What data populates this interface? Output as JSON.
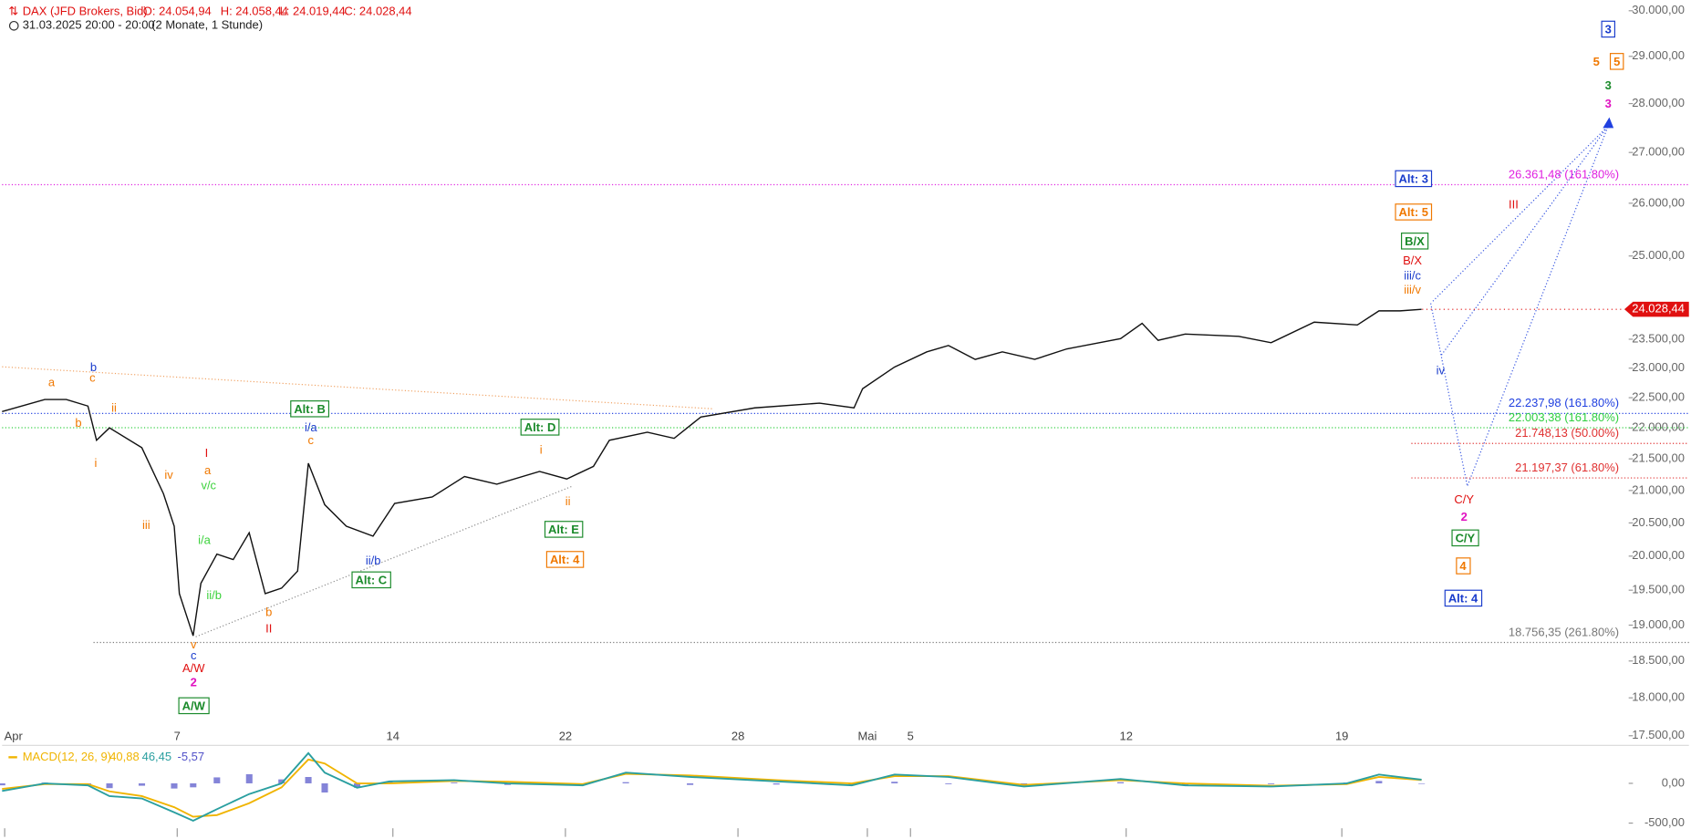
{
  "chart_data": [
    {
      "type": "line",
      "instrument": "DAX (JFD Brokers, Bid)",
      "ohlc_labels": [
        "O: 24.054,94",
        "H: 24.058,44",
        "L: 24.019,44",
        "C: 24.028,44"
      ],
      "period": "31.03.2025 20:00 - 20:00",
      "range": "(2 Monate, 1 Stunde)",
      "log_scale": true,
      "color": "#111111",
      "x": [
        -4.06,
        -3.07,
        -2.57,
        -2.07,
        -1.87,
        -1.57,
        -0.82,
        -0.32,
        -0.07,
        0.05,
        0.37,
        0.55,
        0.92,
        1.3,
        1.67,
        2.04,
        2.42,
        2.79,
        3.04,
        3.42,
        3.92,
        4.54,
        5.04,
        5.91,
        6.66,
        7.41,
        8.4,
        9.03,
        9.65,
        10.02,
        10.9,
        11.52,
        12.14,
        13.39,
        14.89,
        15.69,
        15.89,
        16.63,
        17.38,
        17.88,
        18.5,
        19.13,
        19.88,
        20.62,
        21.87,
        22.37,
        22.74,
        23.37,
        24.61,
        25.36,
        26.36,
        27.36,
        27.86,
        28.35,
        28.85
      ],
      "values": [
        22270,
        22470,
        22470,
        22360,
        21800,
        22000,
        21680,
        20950,
        20450,
        19450,
        18850,
        19600,
        20030,
        19950,
        20350,
        19450,
        19530,
        19780,
        21430,
        20780,
        20450,
        20300,
        20800,
        20900,
        21220,
        21100,
        21300,
        21180,
        21380,
        21800,
        21930,
        21830,
        22180,
        22330,
        22410,
        22330,
        22650,
        23020,
        23280,
        23390,
        23150,
        23280,
        23150,
        23330,
        23510,
        23780,
        23480,
        23590,
        23550,
        23440,
        23800,
        23750,
        24000,
        24000,
        24028.44
      ],
      "last_label": "24.028,44",
      "xlim": [
        -4.06,
        33.6
      ],
      "ylim": [
        17500,
        30000
      ],
      "xticks": [
        {
          "value": -4,
          "label": "Apr"
        },
        {
          "value": 0,
          "label": "7"
        },
        {
          "value": 5,
          "label": "14"
        },
        {
          "value": 9,
          "label": "22"
        },
        {
          "value": 13,
          "label": "28"
        },
        {
          "value": 16,
          "label": "Mai"
        },
        {
          "value": 17,
          "label": "5"
        },
        {
          "value": 22,
          "label": "12"
        },
        {
          "value": 27,
          "label": "19"
        }
      ],
      "yticks": [
        {
          "value": 30000,
          "label": "30.000,00"
        },
        {
          "value": 29000,
          "label": "29.000,00"
        },
        {
          "value": 28000,
          "label": "28.000,00"
        },
        {
          "value": 27000,
          "label": "27.000,00"
        },
        {
          "value": 26000,
          "label": "26.000,00"
        },
        {
          "value": 25000,
          "label": "25.000,00"
        },
        {
          "value": 23500,
          "label": "23.500,00"
        },
        {
          "value": 23000,
          "label": "23.000,00"
        },
        {
          "value": 22500,
          "label": "22.500,00"
        },
        {
          "value": 22000,
          "label": "22.000,00"
        },
        {
          "value": 21500,
          "label": "21.500,00"
        },
        {
          "value": 21000,
          "label": "21.000,00"
        },
        {
          "value": 20500,
          "label": "20.500,00"
        },
        {
          "value": 20000,
          "label": "20.000,00"
        },
        {
          "value": 19500,
          "label": "19.500,00"
        },
        {
          "value": 19000,
          "label": "19.000,00"
        },
        {
          "value": 18500,
          "label": "18.500,00"
        },
        {
          "value": 18000,
          "label": "18.000,00"
        },
        {
          "value": 17500,
          "label": "17.500,00"
        }
      ],
      "levels": [
        {
          "value": 26361.48,
          "label": "26.361,48 (161.80%)",
          "color": "#e020e0"
        },
        {
          "value": 22237.98,
          "label": "22.237,98 (161.80%)",
          "color": "#2040e0"
        },
        {
          "value": 22003.38,
          "label": "22.003,38 (161.80%)",
          "color": "#30d040"
        },
        {
          "value": 21748.13,
          "label": "21.748,13 (50.00%)",
          "color": "#e03030"
        },
        {
          "value": 21197.37,
          "label": "21.197,37 (61.80%)",
          "color": "#e03030"
        },
        {
          "value": 18756.35,
          "label": "18.756,35 (261.80%)",
          "color": "#777777"
        }
      ],
      "annotations": [
        {
          "text": "a",
          "color": "#f07800",
          "box": false
        },
        {
          "text": "b",
          "color": "#1a3ccc",
          "box": false
        },
        {
          "text": "c",
          "color": "#f07800",
          "box": false
        },
        {
          "text": "b",
          "color": "#f07800",
          "box": false
        },
        {
          "text": "ii",
          "color": "#f07800",
          "box": false
        },
        {
          "text": "i",
          "color": "#f07800",
          "box": false
        },
        {
          "text": "iv",
          "color": "#f07800",
          "box": false
        },
        {
          "text": "iii",
          "color": "#f07800",
          "box": false
        },
        {
          "text": "I",
          "color": "#e01010",
          "box": false
        },
        {
          "text": "a",
          "color": "#f07800",
          "box": false
        },
        {
          "text": "v/c",
          "color": "#3cd23c",
          "box": false
        },
        {
          "text": "i/a",
          "color": "#3cd23c",
          "box": false
        },
        {
          "text": "ii/b",
          "color": "#3cd23c",
          "box": false
        },
        {
          "text": "v",
          "color": "#f07800",
          "box": false
        },
        {
          "text": "c",
          "color": "#1a3ccc",
          "box": false
        },
        {
          "text": "A/W",
          "color": "#e01010",
          "box": false
        },
        {
          "text": "2",
          "color": "#e010c0",
          "box": false
        },
        {
          "text": "A/W",
          "color": "#1a8a2a",
          "box": true
        },
        {
          "text": "b",
          "color": "#f07800",
          "box": false
        },
        {
          "text": "II",
          "color": "#e01010",
          "box": false
        },
        {
          "text": "Alt: B",
          "color": "#1a8a2a",
          "box": true
        },
        {
          "text": "i/a",
          "color": "#1a3ccc",
          "box": false
        },
        {
          "text": "c",
          "color": "#f07800",
          "box": false
        },
        {
          "text": "ii/b",
          "color": "#1a3ccc",
          "box": false
        },
        {
          "text": "Alt: C",
          "color": "#1a8a2a",
          "box": true
        },
        {
          "text": "Alt: D",
          "color": "#1a8a2a",
          "box": true
        },
        {
          "text": "i",
          "color": "#f07800",
          "box": false
        },
        {
          "text": "ii",
          "color": "#f07800",
          "box": false
        },
        {
          "text": "Alt: E",
          "color": "#1a8a2a",
          "box": true
        },
        {
          "text": "Alt: 4",
          "color": "#f07800",
          "box": true
        },
        {
          "text": "Alt: 3",
          "color": "#1a3ccc",
          "box": true
        },
        {
          "text": "Alt: 5",
          "color": "#f07800",
          "box": true
        },
        {
          "text": "B/X",
          "color": "#1a8a2a",
          "box": true
        },
        {
          "text": "B/X",
          "color": "#e01010",
          "box": false
        },
        {
          "text": "iii/c",
          "color": "#1a3ccc",
          "box": false
        },
        {
          "text": "iii/v",
          "color": "#f07800",
          "box": false
        },
        {
          "text": "III",
          "color": "#e01010",
          "box": false
        },
        {
          "text": "iv",
          "color": "#1a3ccc",
          "box": false
        },
        {
          "text": "C/Y",
          "color": "#e01010",
          "box": false
        },
        {
          "text": "2",
          "color": "#e010c0",
          "box": false
        },
        {
          "text": "C/Y",
          "color": "#1a8a2a",
          "box": true
        },
        {
          "text": "4",
          "color": "#f07800",
          "box": true
        },
        {
          "text": "Alt: 4",
          "color": "#1a3ccc",
          "box": true
        },
        {
          "text": "3",
          "color": "#1a3ccc",
          "box": true
        },
        {
          "text": "5",
          "color": "#f07800",
          "box": false
        },
        {
          "text": "5",
          "color": "#f07800",
          "box": true
        },
        {
          "text": "3",
          "color": "#1a8a2a",
          "box": false
        },
        {
          "text": "3",
          "color": "#e010c0",
          "box": false
        }
      ]
    },
    {
      "type": "macd",
      "title": "MACD(12, 26, 9)",
      "x": [
        -4.06,
        -3.07,
        -2.07,
        -1.57,
        -0.82,
        -0.07,
        0.37,
        0.92,
        1.67,
        2.42,
        3.04,
        3.42,
        4.17,
        4.92,
        6.42,
        7.66,
        9.4,
        10.4,
        11.89,
        13.89,
        15.64,
        16.63,
        17.88,
        19.63,
        21.87,
        23.37,
        25.36,
        27.11,
        27.86,
        28.85
      ],
      "series": [
        {
          "color": "#f0b400",
          "values": [
            -70,
            -10,
            -10,
            -100,
            -160,
            -300,
            -420,
            -400,
            -250,
            -50,
            300,
            250,
            0,
            0,
            30,
            20,
            -10,
            120,
            100,
            40,
            0,
            90,
            90,
            -20,
            40,
            0,
            -30,
            -10,
            80,
            40.88
          ],
          "current_label": "40,88"
        },
        {
          "color": "#2a9fa0",
          "values": [
            -95,
            0,
            -25,
            -160,
            -190,
            -365,
            -470,
            -325,
            -135,
            0,
            380,
            135,
            -55,
            25,
            40,
            0,
            -25,
            135,
            80,
            25,
            -25,
            110,
            80,
            -40,
            55,
            -25,
            -40,
            0,
            110,
            46.45
          ],
          "current_label": "46,45"
        },
        {
          "color": "#5050c8",
          "values": [
            -25,
            10,
            -15,
            -60,
            -30,
            -65,
            -50,
            75,
            115,
            50,
            80,
            -115,
            -55,
            25,
            10,
            -20,
            -15,
            15,
            -20,
            -15,
            -25,
            20,
            -10,
            -20,
            15,
            -25,
            -10,
            10,
            30,
            -5.57
          ],
          "current_label": "-5,57"
        }
      ],
      "xlim": [
        -4.06,
        33.6
      ],
      "ylim": [
        -700,
        450
      ],
      "yticks": [
        {
          "value": 0,
          "label": "0,00"
        },
        {
          "value": -500,
          "label": "-500,00"
        }
      ]
    }
  ]
}
